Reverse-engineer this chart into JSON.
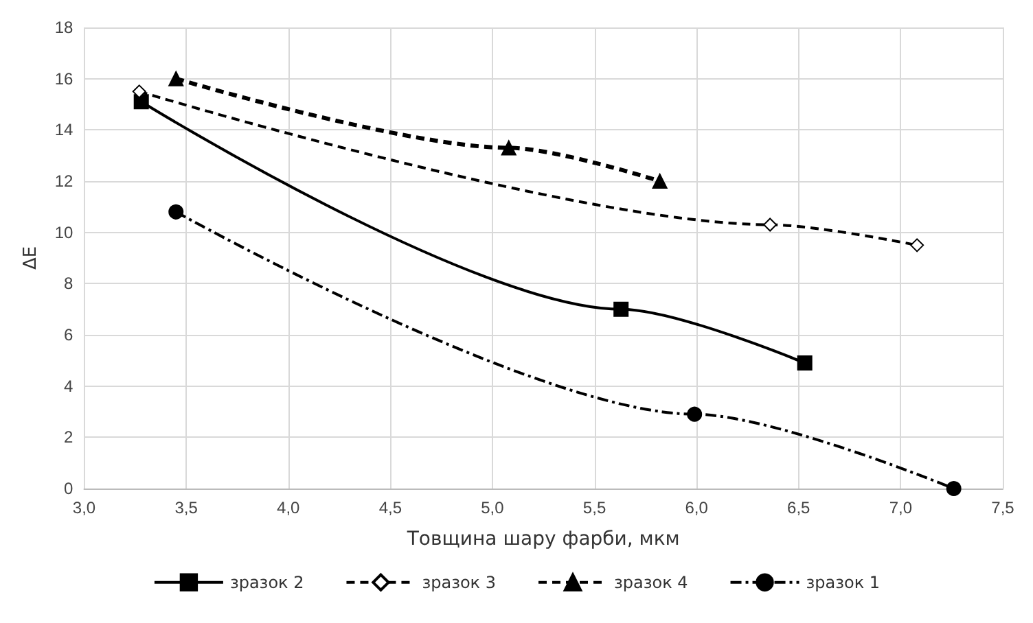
{
  "chart_data": {
    "type": "line",
    "xlabel": "Товщина шару фарби, мкм",
    "ylabel": "ΔE",
    "series": [
      {
        "name": "зразок 2",
        "color": "#000000",
        "marker": "square",
        "line_style": "solid",
        "x": [
          3.28,
          5.63,
          6.53
        ],
        "values": [
          15.1,
          7.0,
          4.9
        ]
      },
      {
        "name": "зразок 3",
        "color": "#000000",
        "marker": "diamond",
        "line_style": "dashed",
        "x": [
          3.27,
          6.36,
          7.08
        ],
        "values": [
          15.5,
          10.3,
          9.5
        ]
      },
      {
        "name": "зразок 4",
        "color": "#000000",
        "marker": "triangle",
        "line_style": "dashed",
        "x": [
          3.45,
          5.08,
          5.82
        ],
        "values": [
          16.0,
          13.3,
          12.0
        ]
      },
      {
        "name": "зразок 1",
        "color": "#000000",
        "marker": "circle",
        "line_style": "dashdot",
        "x": [
          3.45,
          5.99,
          7.26
        ],
        "values": [
          10.8,
          2.9,
          0.0
        ]
      }
    ],
    "xlim": [
      3,
      7.5
    ],
    "xticks": [
      {
        "value": 3,
        "label": "3,0"
      },
      {
        "value": 3.5,
        "label": "3,5"
      },
      {
        "value": 4,
        "label": "4,0"
      },
      {
        "value": 4.5,
        "label": "4,5"
      },
      {
        "value": 5,
        "label": "5,0"
      },
      {
        "value": 5.5,
        "label": "5,5"
      },
      {
        "value": 6,
        "label": "6,0"
      },
      {
        "value": 6.5,
        "label": "6,5"
      },
      {
        "value": 7,
        "label": "7,0"
      },
      {
        "value": 7.5,
        "label": "7,5"
      }
    ],
    "ylim": [
      0,
      18
    ],
    "yticks": [
      0,
      2,
      4,
      6,
      8,
      10,
      12,
      14,
      16,
      18
    ],
    "grid": true,
    "legend": "bottom"
  }
}
